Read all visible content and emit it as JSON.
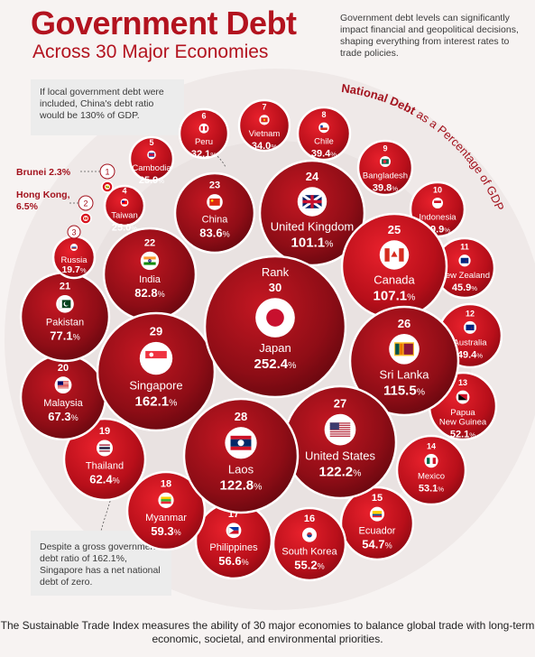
{
  "header": {
    "title": "Government Debt",
    "subtitle": "Across 30 Major Economies",
    "intro": "Government debt levels can significantly impact financial and geopolitical decisions, shaping everything from interest rates to trade policies."
  },
  "curved_label": {
    "bold": "National Debt",
    "rest": " as a Percentage of GDP"
  },
  "rank_header": "Rank",
  "notes": {
    "china": "If local government debt were included, China's debt ratio would be 130% of GDP.",
    "singapore": "Despite a gross government debt ratio of 162.1%, Singapore has a net national debt of zero."
  },
  "footer": "The Sustainable Trade Index measures the ability of 30 major economies to balance global trade with long-term economic, societal, and environmental priorities.",
  "colors": {
    "dark_red": "#7a0c14",
    "red": "#d8111d",
    "accent": "#b3131f"
  },
  "chart_data": {
    "type": "bubble",
    "value_unit": "%",
    "economies": [
      {
        "rank": "1",
        "country": "Brunei",
        "value": "2.3",
        "flag": "brunei-flag"
      },
      {
        "rank": "2",
        "country": "Hong Kong,",
        "value": "6.5",
        "flag": "hong-kong-flag"
      },
      {
        "rank": "3",
        "country": "Russia",
        "value": "19.7",
        "flag": "russia-flag"
      },
      {
        "rank": "4",
        "country": "Taiwan",
        "value": "25.0",
        "flag": "taiwan-flag"
      },
      {
        "rank": "5",
        "country": "Cambodia",
        "value": "25.9",
        "flag": "cambodia-flag"
      },
      {
        "rank": "6",
        "country": "Peru",
        "value": "32.1",
        "flag": "peru-flag"
      },
      {
        "rank": "7",
        "country": "Vietnam",
        "value": "34.0",
        "flag": "vietnam-flag"
      },
      {
        "rank": "8",
        "country": "Chile",
        "value": "39.4",
        "flag": "chile-flag"
      },
      {
        "rank": "9",
        "country": "Bangladesh",
        "value": "39.8",
        "flag": "bangladesh-flag"
      },
      {
        "rank": "10",
        "country": "Indonesia",
        "value": "39.9",
        "flag": "indonesia-flag"
      },
      {
        "rank": "11",
        "country": "New Zealand",
        "value": "45.9",
        "flag": "new-zealand-flag"
      },
      {
        "rank": "12",
        "country": "Australia",
        "value": "49.4",
        "flag": "australia-flag"
      },
      {
        "rank": "13",
        "country": "Papua New Guinea",
        "value": "52.1",
        "flag": "papua-new-guinea-flag"
      },
      {
        "rank": "14",
        "country": "Mexico",
        "value": "53.1",
        "flag": "mexico-flag"
      },
      {
        "rank": "15",
        "country": "Ecuador",
        "value": "54.7",
        "flag": "ecuador-flag"
      },
      {
        "rank": "16",
        "country": "South Korea",
        "value": "55.2",
        "flag": "south-korea-flag"
      },
      {
        "rank": "17",
        "country": "Philippines",
        "value": "56.6",
        "flag": "philippines-flag"
      },
      {
        "rank": "18",
        "country": "Myanmar",
        "value": "59.3",
        "flag": "myanmar-flag"
      },
      {
        "rank": "19",
        "country": "Thailand",
        "value": "62.4",
        "flag": "thailand-flag"
      },
      {
        "rank": "20",
        "country": "Malaysia",
        "value": "67.3",
        "flag": "malaysia-flag"
      },
      {
        "rank": "21",
        "country": "Pakistan",
        "value": "77.1",
        "flag": "pakistan-flag"
      },
      {
        "rank": "22",
        "country": "India",
        "value": "82.8",
        "flag": "india-flag"
      },
      {
        "rank": "23",
        "country": "China",
        "value": "83.6",
        "flag": "china-flag"
      },
      {
        "rank": "24",
        "country": "United Kingdom",
        "value": "101.1",
        "flag": "uk-flag"
      },
      {
        "rank": "25",
        "country": "Canada",
        "value": "107.1",
        "flag": "canada-flag"
      },
      {
        "rank": "26",
        "country": "Sri Lanka",
        "value": "115.5",
        "flag": "sri-lanka-flag"
      },
      {
        "rank": "27",
        "country": "United States",
        "value": "122.2",
        "flag": "us-flag"
      },
      {
        "rank": "28",
        "country": "Laos",
        "value": "122.8",
        "flag": "laos-flag"
      },
      {
        "rank": "29",
        "country": "Singapore",
        "value": "162.1",
        "flag": "singapore-flag"
      },
      {
        "rank": "30",
        "country": "Japan",
        "value": "252.4",
        "flag": "japan-flag"
      }
    ]
  }
}
